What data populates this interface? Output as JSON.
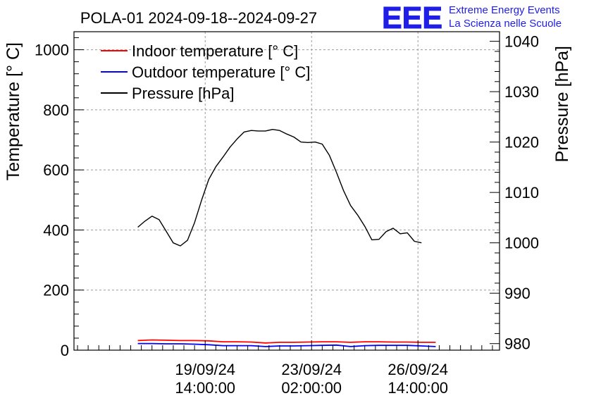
{
  "chart_data": {
    "type": "line",
    "title": "POLA-01 2024-09-18--2024-09-27",
    "ylabel_left": "Temperature [° C]",
    "ylabel_right": "Pressure [hPa]",
    "ylim_left": [
      0,
      1060
    ],
    "ylim_right": [
      978.7,
      1041.9
    ],
    "yticks_left": [
      "0",
      "200",
      "400",
      "600",
      "800",
      "1000"
    ],
    "yticks_right": [
      "980",
      "990",
      "1000",
      "1010",
      "1020",
      "1030",
      "1040"
    ],
    "xlim_hours": [
      -36,
      204
    ],
    "xticks": [
      {
        "hours": 38,
        "label": [
          "19/09/24",
          "14:00:00"
        ]
      },
      {
        "hours": 98,
        "label": [
          "23/09/24",
          "02:00:00"
        ]
      },
      {
        "hours": 158,
        "label": [
          "26/09/24",
          "14:00:00"
        ]
      }
    ],
    "legend_position": "top-left",
    "series": [
      {
        "name": "Indoor temperature [° C]",
        "color": "#ff0000",
        "axis": "left",
        "x_hours": [
          0,
          8,
          16,
          24,
          32,
          40,
          48,
          56,
          64,
          72,
          80,
          88,
          96,
          104,
          112,
          120,
          128,
          136,
          144,
          152,
          160,
          168
        ],
        "values": [
          32,
          34,
          33,
          32,
          32,
          31,
          28,
          28,
          27,
          24,
          26,
          26,
          27,
          28,
          28,
          26,
          28,
          28,
          27,
          27,
          26,
          26
        ]
      },
      {
        "name": "Outdoor temperature [° C]",
        "color": "#0000ff",
        "axis": "left",
        "x_hours": [
          0,
          8,
          16,
          24,
          32,
          40,
          48,
          56,
          64,
          72,
          80,
          88,
          96,
          104,
          112,
          120,
          128,
          136,
          144,
          152,
          160,
          168
        ],
        "values": [
          22,
          22,
          21,
          21,
          20,
          18,
          15,
          15,
          15,
          12,
          14,
          14,
          15,
          16,
          17,
          12,
          15,
          16,
          16,
          16,
          14,
          12
        ]
      },
      {
        "name": "Pressure [hPa]",
        "color": "#000000",
        "axis": "right",
        "x_hours": [
          0,
          4,
          8,
          12,
          16,
          20,
          24,
          28,
          32,
          36,
          40,
          44,
          48,
          52,
          56,
          60,
          64,
          68,
          72,
          76,
          80,
          84,
          88,
          92,
          96,
          100,
          104,
          108,
          112,
          116,
          120,
          124,
          128,
          132,
          136,
          140,
          144,
          148,
          152,
          156,
          160,
          164,
          168
        ],
        "values": [
          1003.1,
          1004.3,
          1005.3,
          1004.6,
          1002.3,
          1000.0,
          999.4,
          1000.5,
          1004.0,
          1008.5,
          1012.6,
          1015.1,
          1017.0,
          1019.0,
          1020.6,
          1022.0,
          1022.3,
          1022.2,
          1022.2,
          1022.5,
          1022.3,
          1021.6,
          1021.0,
          1020.0,
          1019.9,
          1020.0,
          1019.6,
          1017.4,
          1014.0,
          1010.4,
          1007.4,
          1005.5,
          1003.3,
          1000.6,
          1000.7,
          1002.2,
          1002.9,
          1001.8,
          1002.0,
          1000.3,
          1000.0,
          null,
          null
        ]
      }
    ]
  },
  "logo": {
    "mark": "EEE",
    "line1": "Extreme Energy Events",
    "line2": "La Scienza nelle Scuole"
  }
}
